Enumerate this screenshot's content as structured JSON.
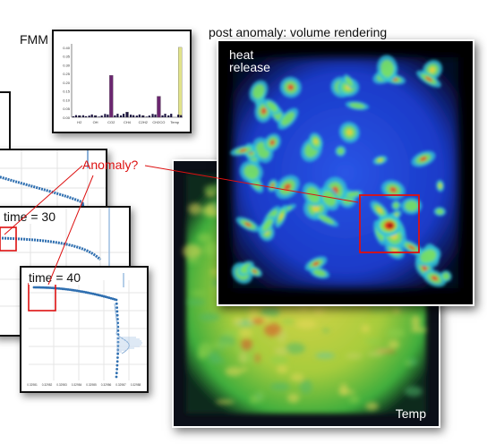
{
  "labels": {
    "fmm": "FMM",
    "volume_title": "post anomaly: volume rendering",
    "anomaly": "Anomaly?",
    "heat_release": [
      "heat",
      "release"
    ],
    "temp": "Temp"
  },
  "time_plots": [
    {
      "title": "time = 30"
    },
    {
      "title": "time = 40"
    }
  ],
  "colors": {
    "anomaly": "#dd1111",
    "series": "#2f6fb0",
    "fmm_tall": "#e1e38a",
    "fmm_purple": "#6b2670",
    "fmm_dark": "#1c1440"
  },
  "chart_data": [
    {
      "type": "bar",
      "categories": [
        "H2",
        "OH",
        "CO2",
        "CH4",
        "C2H2",
        "CH2CO",
        "Temp"
      ],
      "values": [
        0.01,
        0.01,
        0.24,
        0.03,
        0.01,
        0.12,
        0.4
      ],
      "tick_labels": [
        "0.40",
        "0.35",
        "0.30",
        "0.25",
        "0.20",
        "0.15",
        "0.10",
        "0.05",
        "0.00"
      ],
      "ylim": [
        0,
        0.42
      ]
    },
    {
      "type": "scatter",
      "tick_labels": [
        "0.32981",
        "0.32982",
        "0.32983",
        "0.32984",
        "0.32985",
        "0.32986",
        "0.32987",
        "0.32988"
      ]
    }
  ]
}
